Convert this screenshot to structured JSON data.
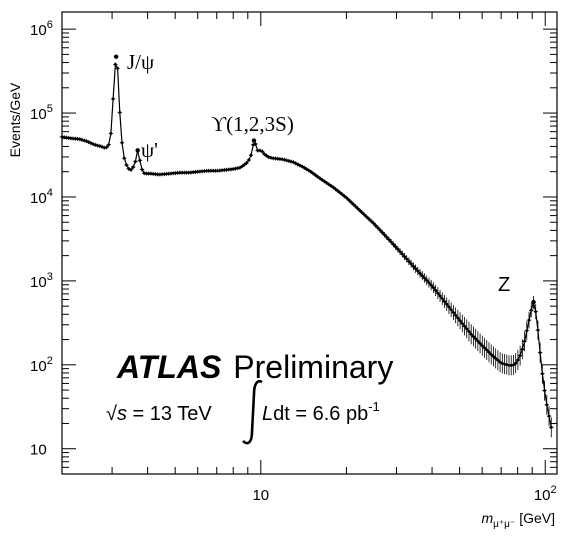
{
  "chart_data": {
    "type": "line",
    "title": "",
    "xlabel": "m",
    "xlabel_subscript": "μ⁺μ⁻",
    "xlabel_unit": "[GeV]",
    "ylabel": "Events/GeV",
    "xscale": "log",
    "yscale": "log",
    "xlim": [
      2.0,
      110
    ],
    "ylim": [
      5,
      1600000
    ],
    "grid": false,
    "legend": "none",
    "x_ticks": [
      {
        "value": 10,
        "label": "10"
      },
      {
        "value": 100,
        "label": "10",
        "sup": "2"
      }
    ],
    "y_ticks": [
      {
        "value": 10,
        "label": "10"
      },
      {
        "value": 100,
        "label": "10",
        "sup": "2"
      },
      {
        "value": 1000,
        "label": "10",
        "sup": "3"
      },
      {
        "value": 10000,
        "label": "10",
        "sup": "4"
      },
      {
        "value": 100000,
        "label": "10",
        "sup": "5"
      },
      {
        "value": 1000000,
        "label": "10",
        "sup": "6"
      }
    ],
    "annotations": [
      {
        "text": "J/ψ",
        "x": 3.1
      },
      {
        "text": "ψ'",
        "x": 3.69
      },
      {
        "text": "ϒ(1,2,3S)",
        "x": 9.5
      },
      {
        "text": "Z",
        "x": 91
      }
    ],
    "experiment": {
      "name": "ATLAS",
      "status": "Preliminary",
      "energy_prefix": "√",
      "energy_var": "s",
      "energy_text": " = 13 TeV",
      "lumi_var": "L",
      "lumi_text": "dt = 6.6 pb",
      "lumi_sup": "-1"
    },
    "series": [
      {
        "points": [
          [
            2.0,
            52000
          ],
          [
            2.15,
            50000
          ],
          [
            2.3,
            49000
          ],
          [
            2.45,
            46000
          ],
          [
            2.6,
            42000
          ],
          [
            2.75,
            40000
          ],
          [
            2.85,
            38000
          ],
          [
            2.92,
            42000
          ],
          [
            2.98,
            60000
          ],
          [
            3.02,
            130000
          ],
          [
            3.06,
            300000
          ],
          [
            3.1,
            470000
          ],
          [
            3.13,
            400000
          ],
          [
            3.16,
            200000
          ],
          [
            3.2,
            90000
          ],
          [
            3.25,
            45000
          ],
          [
            3.3,
            30000
          ],
          [
            3.4,
            22000
          ],
          [
            3.5,
            21000
          ],
          [
            3.6,
            24000
          ],
          [
            3.66,
            31000
          ],
          [
            3.69,
            36000
          ],
          [
            3.73,
            31000
          ],
          [
            3.8,
            22000
          ],
          [
            3.9,
            19000
          ],
          [
            4.1,
            19000
          ],
          [
            4.4,
            18500
          ],
          [
            4.8,
            19000
          ],
          [
            5.2,
            19500
          ],
          [
            5.6,
            19500
          ],
          [
            6.0,
            20000
          ],
          [
            6.5,
            20500
          ],
          [
            7.0,
            20500
          ],
          [
            7.5,
            21000
          ],
          [
            8.0,
            21500
          ],
          [
            8.5,
            22500
          ],
          [
            9.0,
            26000
          ],
          [
            9.3,
            33000
          ],
          [
            9.46,
            47000
          ],
          [
            9.6,
            42000
          ],
          [
            9.8,
            34000
          ],
          [
            10.02,
            37000
          ],
          [
            10.2,
            33000
          ],
          [
            10.36,
            32000
          ],
          [
            10.6,
            30000
          ],
          [
            11.0,
            29000
          ],
          [
            12.0,
            28000
          ],
          [
            13.0,
            26000
          ],
          [
            14.0,
            23000
          ],
          [
            15.0,
            20000
          ],
          [
            16.0,
            17000
          ],
          [
            18.0,
            13000
          ],
          [
            20.0,
            9800
          ],
          [
            22.0,
            7200
          ],
          [
            25.0,
            4800
          ],
          [
            28.0,
            3200
          ],
          [
            31.0,
            2200
          ],
          [
            35.0,
            1400
          ],
          [
            40.0,
            870
          ],
          [
            45.0,
            530
          ],
          [
            50.0,
            340
          ],
          [
            55.0,
            230
          ],
          [
            60.0,
            170
          ],
          [
            65.0,
            130
          ],
          [
            70.0,
            105
          ],
          [
            75.0,
            98
          ],
          [
            78.0,
            100
          ],
          [
            81.0,
            120
          ],
          [
            84.0,
            170
          ],
          [
            87.0,
            300
          ],
          [
            89.0,
            430
          ],
          [
            91.0,
            560
          ],
          [
            93.0,
            400
          ],
          [
            95.0,
            200
          ],
          [
            97.0,
            95
          ],
          [
            99.0,
            55
          ],
          [
            101.0,
            35
          ],
          [
            103.0,
            25
          ],
          [
            105.0,
            18
          ]
        ]
      }
    ]
  }
}
